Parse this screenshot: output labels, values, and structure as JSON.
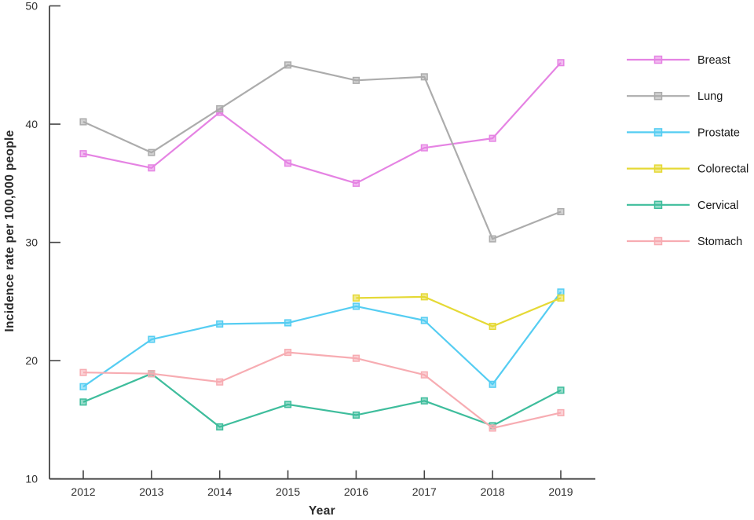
{
  "figure": {
    "background": "#ffffff",
    "axis_color": "#454545",
    "tick_label_color": "#2e2e2e",
    "legend_label_color": "#161616"
  },
  "chart_data": {
    "type": "line",
    "x": [
      2012,
      2013,
      2014,
      2015,
      2016,
      2017,
      2018,
      2019
    ],
    "series": [
      {
        "name": "Breast",
        "color": "#E583E3",
        "values": [
          37.5,
          36.3,
          41.0,
          36.7,
          35.0,
          38.0,
          38.8,
          45.2
        ]
      },
      {
        "name": "Lung",
        "color": "#ACACAC",
        "values": [
          40.2,
          37.6,
          41.3,
          45.0,
          43.7,
          44.0,
          30.3,
          32.6
        ]
      },
      {
        "name": "Prostate",
        "color": "#55CDF2",
        "values": [
          17.8,
          21.8,
          23.1,
          23.2,
          24.6,
          23.4,
          18.0,
          25.8
        ]
      },
      {
        "name": "Colorectal",
        "color": "#E5D935",
        "values": [
          null,
          null,
          null,
          null,
          25.3,
          25.4,
          22.9,
          25.3
        ]
      },
      {
        "name": "Cervical",
        "color": "#3EBD9C",
        "values": [
          16.5,
          18.9,
          14.4,
          16.3,
          15.4,
          16.6,
          14.5,
          17.5
        ]
      },
      {
        "name": "Stomach",
        "color": "#F7ACB2",
        "values": [
          19.0,
          18.9,
          18.2,
          20.7,
          20.2,
          18.8,
          14.3,
          15.6
        ]
      }
    ],
    "title": "",
    "xlabel": "Year",
    "ylabel": "Incidence rate per 100,000 people",
    "ylim": [
      10,
      50
    ],
    "yticks": [
      10,
      20,
      30,
      40,
      50
    ],
    "grid": false,
    "legend_position": "right",
    "marker": "square"
  }
}
